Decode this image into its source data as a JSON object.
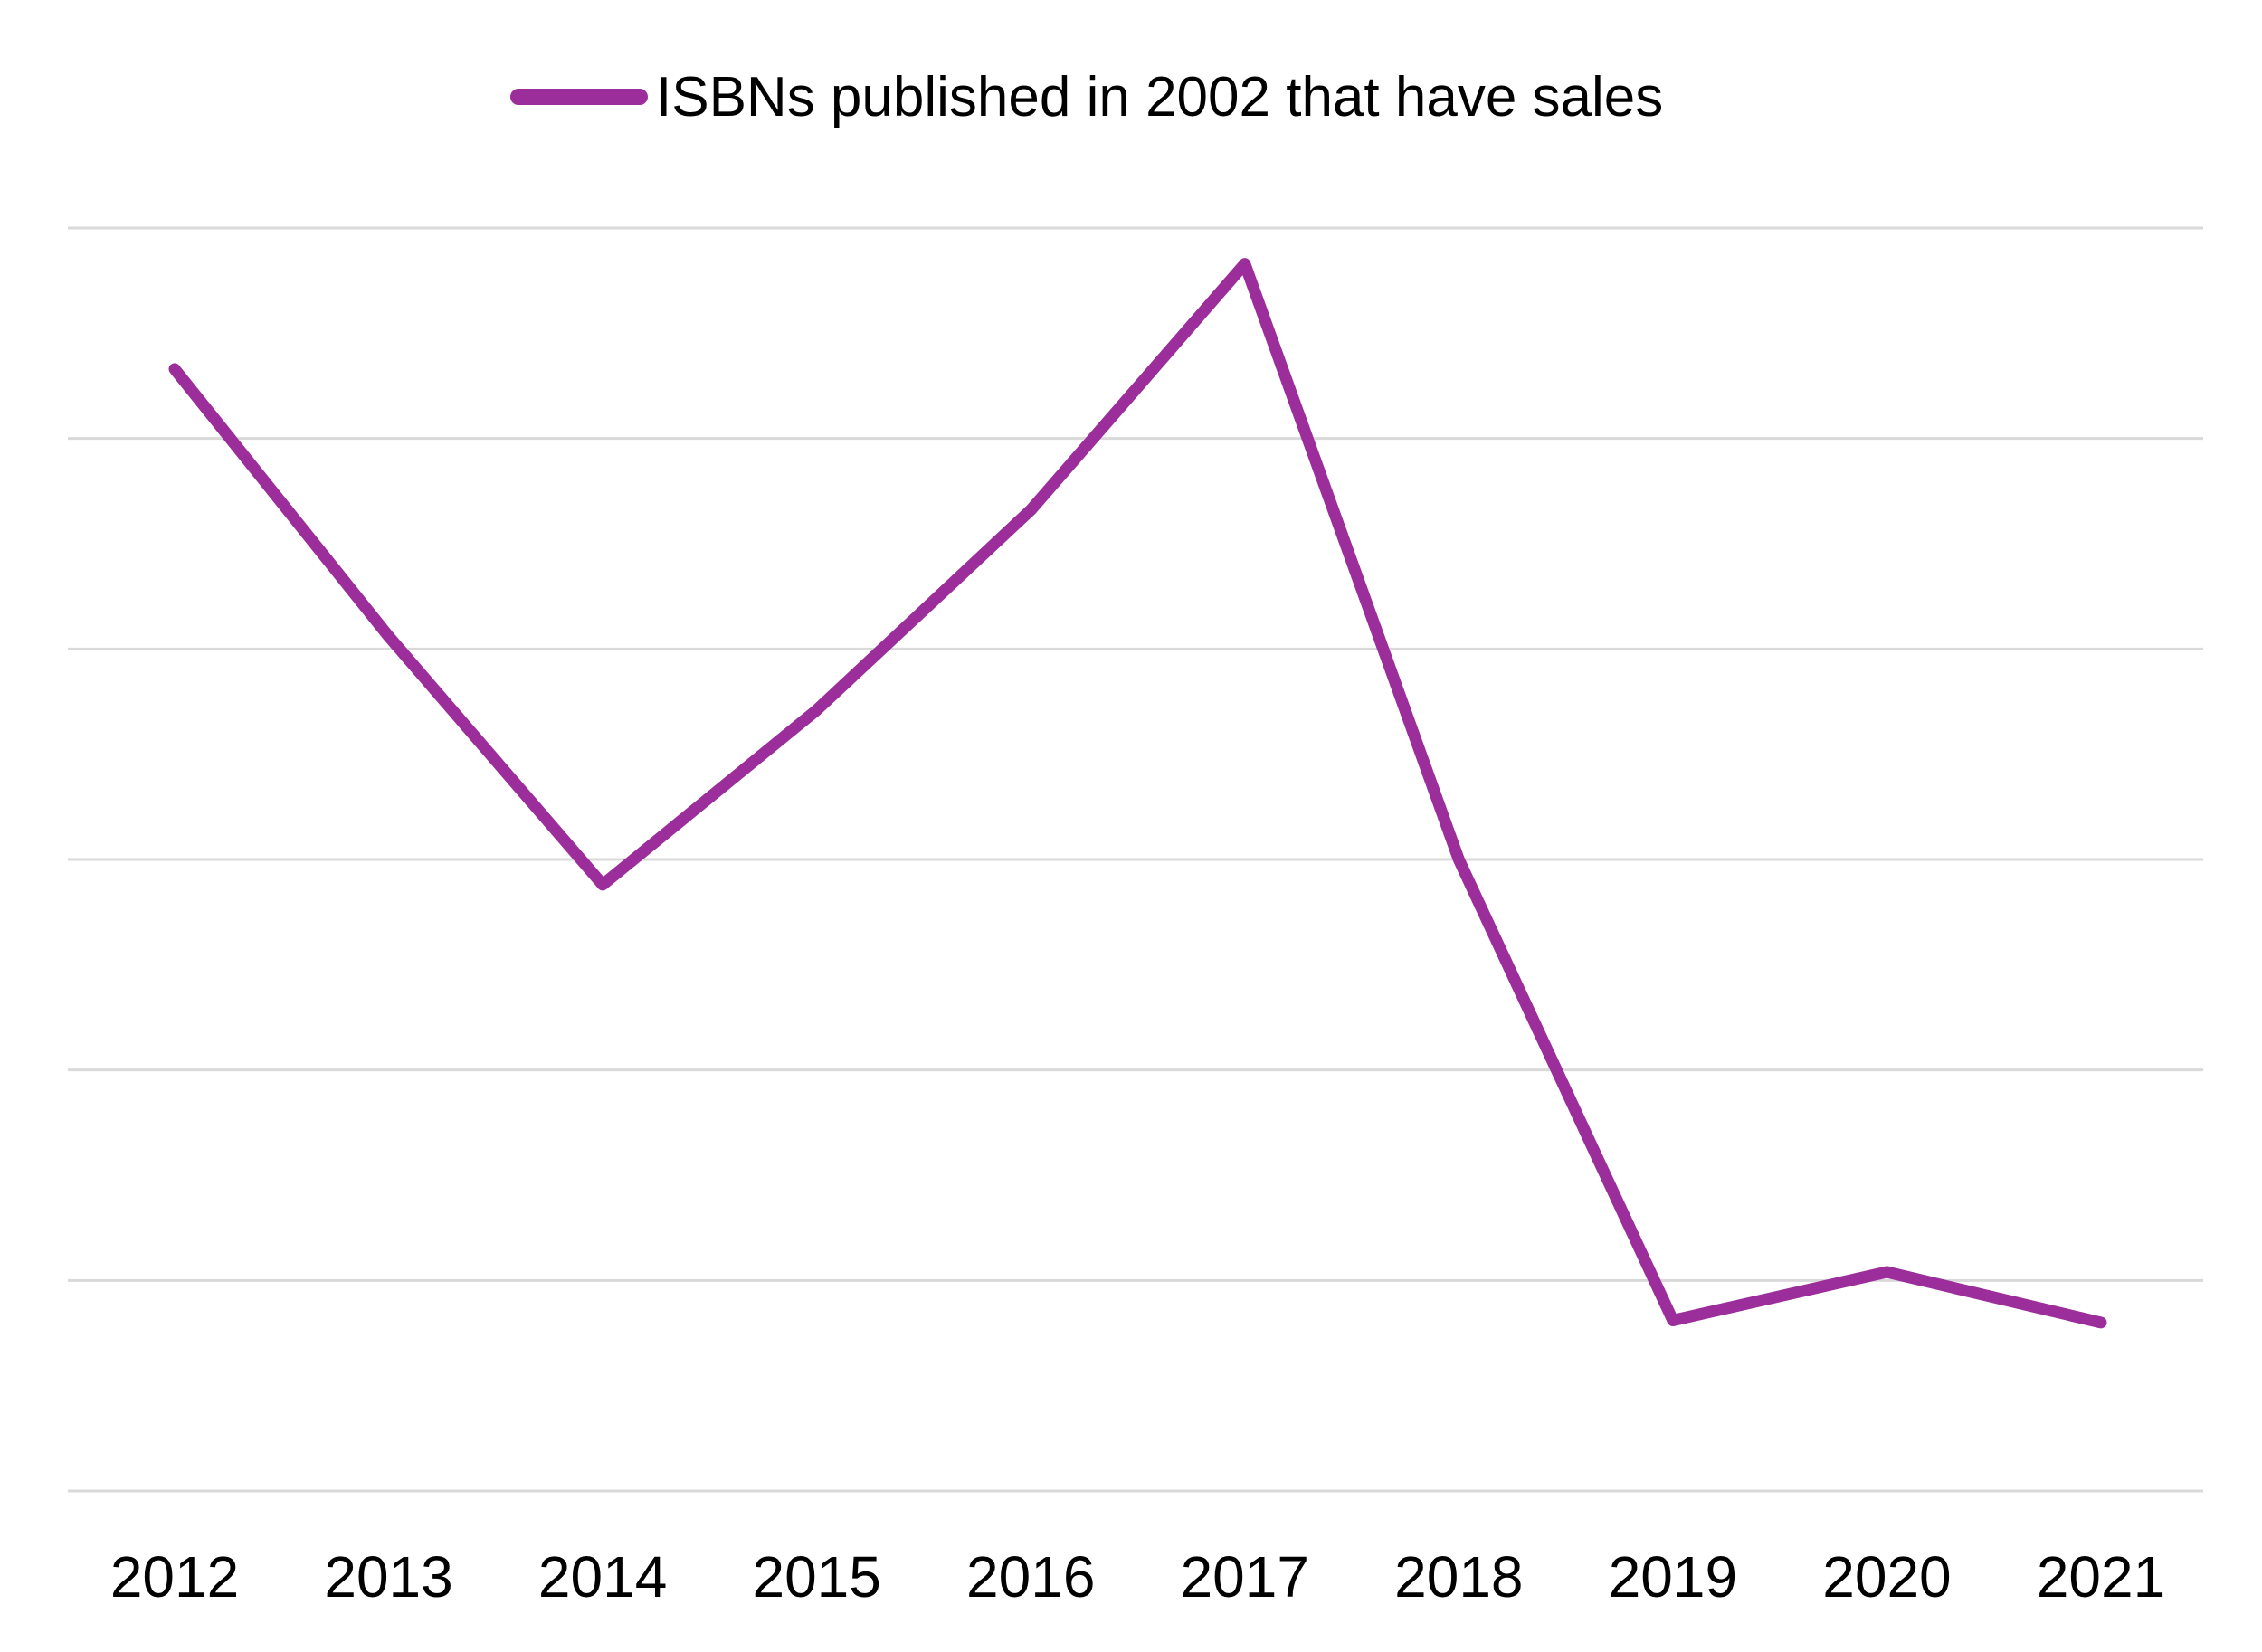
{
  "chart_data": {
    "type": "line",
    "categories": [
      "2012",
      "2013",
      "2014",
      "2015",
      "2016",
      "2017",
      "2018",
      "2019",
      "2020",
      "2021"
    ],
    "series": [
      {
        "name": "ISBNs published in 2002 that have sales",
        "values": [
          5.33,
          4.06,
          2.88,
          3.71,
          4.66,
          5.83,
          3.0,
          0.81,
          1.04,
          0.8
        ],
        "color": "#9B2E9B"
      }
    ],
    "title": "",
    "xlabel": "",
    "ylabel": "",
    "ylim": [
      0,
      6
    ],
    "grid": true,
    "legend_position": "top-center",
    "gridline_color": "#D9D9D9"
  }
}
